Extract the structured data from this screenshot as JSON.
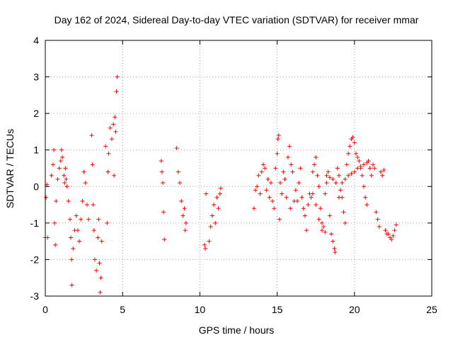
{
  "chart_data": {
    "type": "scatter",
    "title": "Day 162 of 2024, Sidereal Day-to-day VTEC variation (SDTVAR) for receiver mmar",
    "xlabel": "GPS time / hours",
    "ylabel": "SDTVAR / TECUs",
    "xlim": [
      0,
      25
    ],
    "ylim": [
      -3,
      4
    ],
    "xticks": [
      0,
      5,
      10,
      15,
      20,
      25
    ],
    "yticks": [
      -3,
      -2,
      -1,
      0,
      1,
      2,
      3,
      4
    ],
    "grid": true,
    "marker": "+",
    "series": [
      {
        "name": "SDTVAR",
        "color": "#ff0000",
        "points": [
          [
            0.0,
            -1.4
          ],
          [
            0.05,
            -0.3
          ],
          [
            0.1,
            0.05
          ],
          [
            0.15,
            -1.4
          ],
          [
            0.4,
            0.3
          ],
          [
            0.5,
            0.6
          ],
          [
            0.55,
            1.0
          ],
          [
            0.6,
            -1.0
          ],
          [
            0.65,
            -1.6
          ],
          [
            0.7,
            -0.4
          ],
          [
            0.8,
            0.2
          ],
          [
            0.9,
            0.5
          ],
          [
            1.0,
            0.7
          ],
          [
            1.05,
            1.0
          ],
          [
            1.1,
            0.8
          ],
          [
            1.2,
            0.3
          ],
          [
            1.25,
            0.1
          ],
          [
            1.3,
            0.5
          ],
          [
            1.35,
            0.2
          ],
          [
            1.4,
            0.0
          ],
          [
            1.5,
            -0.4
          ],
          [
            1.6,
            -0.9
          ],
          [
            1.65,
            -1.4
          ],
          [
            1.7,
            -2.0
          ],
          [
            1.72,
            -2.7
          ],
          [
            1.8,
            -1.7
          ],
          [
            1.9,
            -1.2
          ],
          [
            2.0,
            -0.8
          ],
          [
            2.1,
            -1.2
          ],
          [
            2.2,
            -1.5
          ],
          [
            2.3,
            -0.9
          ],
          [
            2.4,
            -0.4
          ],
          [
            2.5,
            0.4
          ],
          [
            2.6,
            0.1
          ],
          [
            2.7,
            -0.5
          ],
          [
            2.8,
            -0.9
          ],
          [
            3.0,
            1.4
          ],
          [
            3.05,
            0.6
          ],
          [
            3.1,
            -0.5
          ],
          [
            3.15,
            -1.2
          ],
          [
            3.2,
            -2.0
          ],
          [
            3.3,
            -2.3
          ],
          [
            3.4,
            -1.4
          ],
          [
            3.45,
            -0.9
          ],
          [
            3.5,
            -2.1
          ],
          [
            3.55,
            -2.9
          ],
          [
            3.6,
            -2.5
          ],
          [
            3.65,
            -1.5
          ],
          [
            3.9,
            1.1
          ],
          [
            4.0,
            -1.0
          ],
          [
            4.05,
            0.4
          ],
          [
            4.1,
            0.9
          ],
          [
            4.2,
            1.6
          ],
          [
            4.3,
            1.3
          ],
          [
            4.4,
            1.7
          ],
          [
            4.45,
            0.3
          ],
          [
            4.5,
            1.9
          ],
          [
            4.55,
            1.5
          ],
          [
            4.6,
            2.6
          ],
          [
            4.65,
            3.0
          ],
          [
            7.5,
            0.7
          ],
          [
            7.55,
            0.4
          ],
          [
            7.6,
            0.1
          ],
          [
            7.65,
            -0.7
          ],
          [
            7.7,
            -1.45
          ],
          [
            8.5,
            1.05
          ],
          [
            8.6,
            0.4
          ],
          [
            8.7,
            0.1
          ],
          [
            8.8,
            -0.4
          ],
          [
            8.9,
            -0.8
          ],
          [
            9.0,
            -0.6
          ],
          [
            9.05,
            -1.2
          ],
          [
            9.1,
            -1.0
          ],
          [
            10.3,
            -1.6
          ],
          [
            10.35,
            -1.7
          ],
          [
            10.4,
            -0.2
          ],
          [
            10.6,
            -1.5
          ],
          [
            10.7,
            -1.1
          ],
          [
            10.8,
            -0.8
          ],
          [
            10.9,
            -0.5
          ],
          [
            11.0,
            -1.0
          ],
          [
            11.1,
            -0.3
          ],
          [
            11.2,
            -0.6
          ],
          [
            11.3,
            -0.2
          ],
          [
            11.35,
            -0.05
          ],
          [
            13.5,
            -0.6
          ],
          [
            13.6,
            -0.1
          ],
          [
            13.7,
            0.0
          ],
          [
            13.8,
            0.3
          ],
          [
            13.9,
            -0.2
          ],
          [
            14.0,
            0.4
          ],
          [
            14.1,
            0.6
          ],
          [
            14.2,
            0.5
          ],
          [
            14.3,
            -0.1
          ],
          [
            14.4,
            0.2
          ],
          [
            14.5,
            -0.3
          ],
          [
            14.6,
            0.1
          ],
          [
            14.7,
            -0.4
          ],
          [
            14.8,
            -0.6
          ],
          [
            14.9,
            0.5
          ],
          [
            15.0,
            0.9
          ],
          [
            15.05,
            1.3
          ],
          [
            15.1,
            1.4
          ],
          [
            15.15,
            -0.9
          ],
          [
            15.2,
            0.1
          ],
          [
            15.3,
            -0.2
          ],
          [
            15.4,
            0.4
          ],
          [
            15.5,
            0.2
          ],
          [
            15.6,
            -0.3
          ],
          [
            15.7,
            0.8
          ],
          [
            15.8,
            1.1
          ],
          [
            15.85,
            -0.6
          ],
          [
            15.9,
            0.6
          ],
          [
            16.0,
            0.4
          ],
          [
            16.1,
            -0.4
          ],
          [
            16.2,
            -0.1
          ],
          [
            16.3,
            -0.4
          ],
          [
            16.4,
            0.1
          ],
          [
            16.5,
            0.5
          ],
          [
            16.6,
            -0.3
          ],
          [
            16.7,
            -0.6
          ],
          [
            16.8,
            -0.8
          ],
          [
            16.9,
            -1.2
          ],
          [
            17.0,
            -0.5
          ],
          [
            17.1,
            -0.2
          ],
          [
            17.2,
            -0.3
          ],
          [
            17.3,
            0.4
          ],
          [
            17.4,
            0.6
          ],
          [
            17.5,
            0.8
          ],
          [
            17.6,
            0.3
          ],
          [
            17.7,
            0.0
          ],
          [
            17.8,
            -0.6
          ],
          [
            17.9,
            -1.0
          ],
          [
            18.0,
            -1.1
          ],
          [
            18.1,
            -0.2
          ],
          [
            18.2,
            0.1
          ],
          [
            18.3,
            0.4
          ],
          [
            18.4,
            -0.8
          ],
          [
            18.5,
            -1.3
          ],
          [
            18.6,
            -1.5
          ],
          [
            18.7,
            -1.7
          ],
          [
            18.75,
            -1.8
          ],
          [
            18.9,
            0.5
          ],
          [
            19.0,
            0.3
          ],
          [
            19.1,
            -0.1
          ],
          [
            19.2,
            -0.3
          ],
          [
            19.3,
            -0.7
          ],
          [
            19.4,
            -1.0
          ],
          [
            19.5,
            0.6
          ],
          [
            19.6,
            0.9
          ],
          [
            19.7,
            1.1
          ],
          [
            19.8,
            1.3
          ],
          [
            19.9,
            1.35
          ],
          [
            20.0,
            1.2
          ],
          [
            20.1,
            0.9
          ],
          [
            20.2,
            0.8
          ],
          [
            20.3,
            0.7
          ],
          [
            20.4,
            0.5
          ],
          [
            20.5,
            0.3
          ],
          [
            20.6,
            0.0
          ],
          [
            20.7,
            -0.3
          ],
          [
            20.8,
            -0.5
          ],
          [
            20.9,
            0.7
          ],
          [
            21.0,
            0.5
          ],
          [
            21.1,
            0.3
          ],
          [
            21.2,
            0.6
          ],
          [
            21.3,
            0.5
          ],
          [
            21.4,
            -0.7
          ],
          [
            21.5,
            -0.9
          ],
          [
            21.6,
            -1.1
          ],
          [
            21.7,
            0.4
          ],
          [
            21.8,
            0.3
          ],
          [
            21.9,
            0.45
          ],
          [
            22.0,
            -1.2
          ],
          [
            22.1,
            -1.3
          ],
          [
            22.2,
            -1.3
          ],
          [
            22.3,
            -1.4
          ],
          [
            22.4,
            -1.45
          ],
          [
            22.5,
            -1.35
          ],
          [
            22.6,
            -1.2
          ],
          [
            22.7,
            -1.05
          ],
          [
            19.0,
            -0.3
          ],
          [
            19.2,
            0.1
          ],
          [
            19.4,
            0.2
          ],
          [
            19.6,
            0.3
          ],
          [
            19.8,
            0.35
          ],
          [
            20.0,
            0.4
          ],
          [
            20.2,
            0.5
          ],
          [
            20.4,
            0.55
          ],
          [
            20.6,
            0.6
          ],
          [
            20.8,
            0.65
          ],
          [
            18.2,
            0.3
          ],
          [
            18.4,
            0.25
          ],
          [
            18.6,
            0.2
          ],
          [
            18.8,
            0.1
          ],
          [
            17.3,
            -0.2
          ],
          [
            17.5,
            -0.5
          ],
          [
            17.7,
            -0.9
          ],
          [
            17.9,
            -1.2
          ],
          [
            18.1,
            -1.25
          ]
        ]
      }
    ]
  }
}
